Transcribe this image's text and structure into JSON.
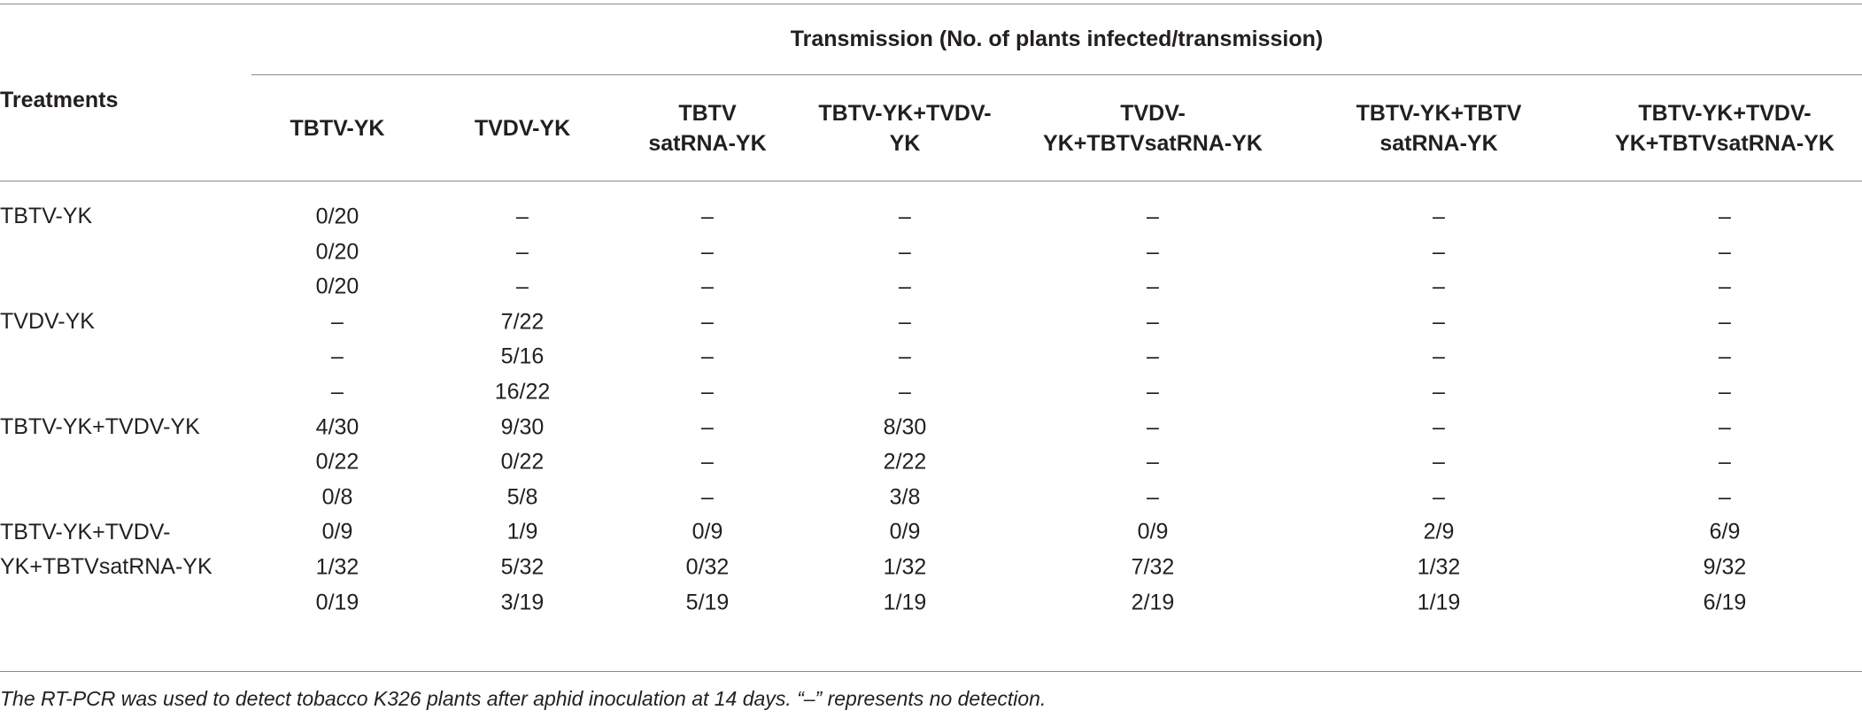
{
  "table": {
    "spanner": "Transmission (No. of plants infected/transmission)",
    "stub_header": "Treatments",
    "columns": [
      "TBTV-YK",
      "TVDV-YK",
      "TBTV satRNA-YK",
      "TBTV-YK+TVDV-YK",
      "TVDV-YK+TBTVsatRNA-YK",
      "TBTV-YK+TBTV satRNA-YK",
      "TBTV-YK+TVDV-YK+TBTVsatRNA-YK"
    ],
    "groups": [
      {
        "treatment": "TBTV-YK",
        "rows": [
          [
            "0/20",
            "–",
            "–",
            "–",
            "–",
            "–",
            "–"
          ],
          [
            "0/20",
            "–",
            "–",
            "–",
            "–",
            "–",
            "–"
          ],
          [
            "0/20",
            "–",
            "–",
            "–",
            "–",
            "–",
            "–"
          ]
        ]
      },
      {
        "treatment": "TVDV-YK",
        "rows": [
          [
            "–",
            "7/22",
            "–",
            "–",
            "–",
            "–",
            "–"
          ],
          [
            "–",
            "5/16",
            "–",
            "–",
            "–",
            "–",
            "–"
          ],
          [
            "–",
            "16/22",
            "–",
            "–",
            "–",
            "–",
            "–"
          ]
        ]
      },
      {
        "treatment": "TBTV-YK+TVDV-YK",
        "rows": [
          [
            "4/30",
            "9/30",
            "–",
            "8/30",
            "–",
            "–",
            "–"
          ],
          [
            "0/22",
            "0/22",
            "–",
            "2/22",
            "–",
            "–",
            "–"
          ],
          [
            "0/8",
            "5/8",
            "–",
            "3/8",
            "–",
            "–",
            "–"
          ]
        ]
      },
      {
        "treatment": "TBTV-YK+TVDV-YK+TBTVsatRNA-YK",
        "rows": [
          [
            "0/9",
            "1/9",
            "0/9",
            "0/9",
            "0/9",
            "2/9",
            "6/9"
          ],
          [
            "1/32",
            "5/32",
            "0/32",
            "1/32",
            "7/32",
            "1/32",
            "9/32"
          ],
          [
            "0/19",
            "3/19",
            "5/19",
            "1/19",
            "2/19",
            "1/19",
            "6/19"
          ]
        ]
      }
    ]
  },
  "footnote": "The RT-PCR was used to detect tobacco K326 plants after aphid inoculation at 14 days. “–” represents no detection."
}
